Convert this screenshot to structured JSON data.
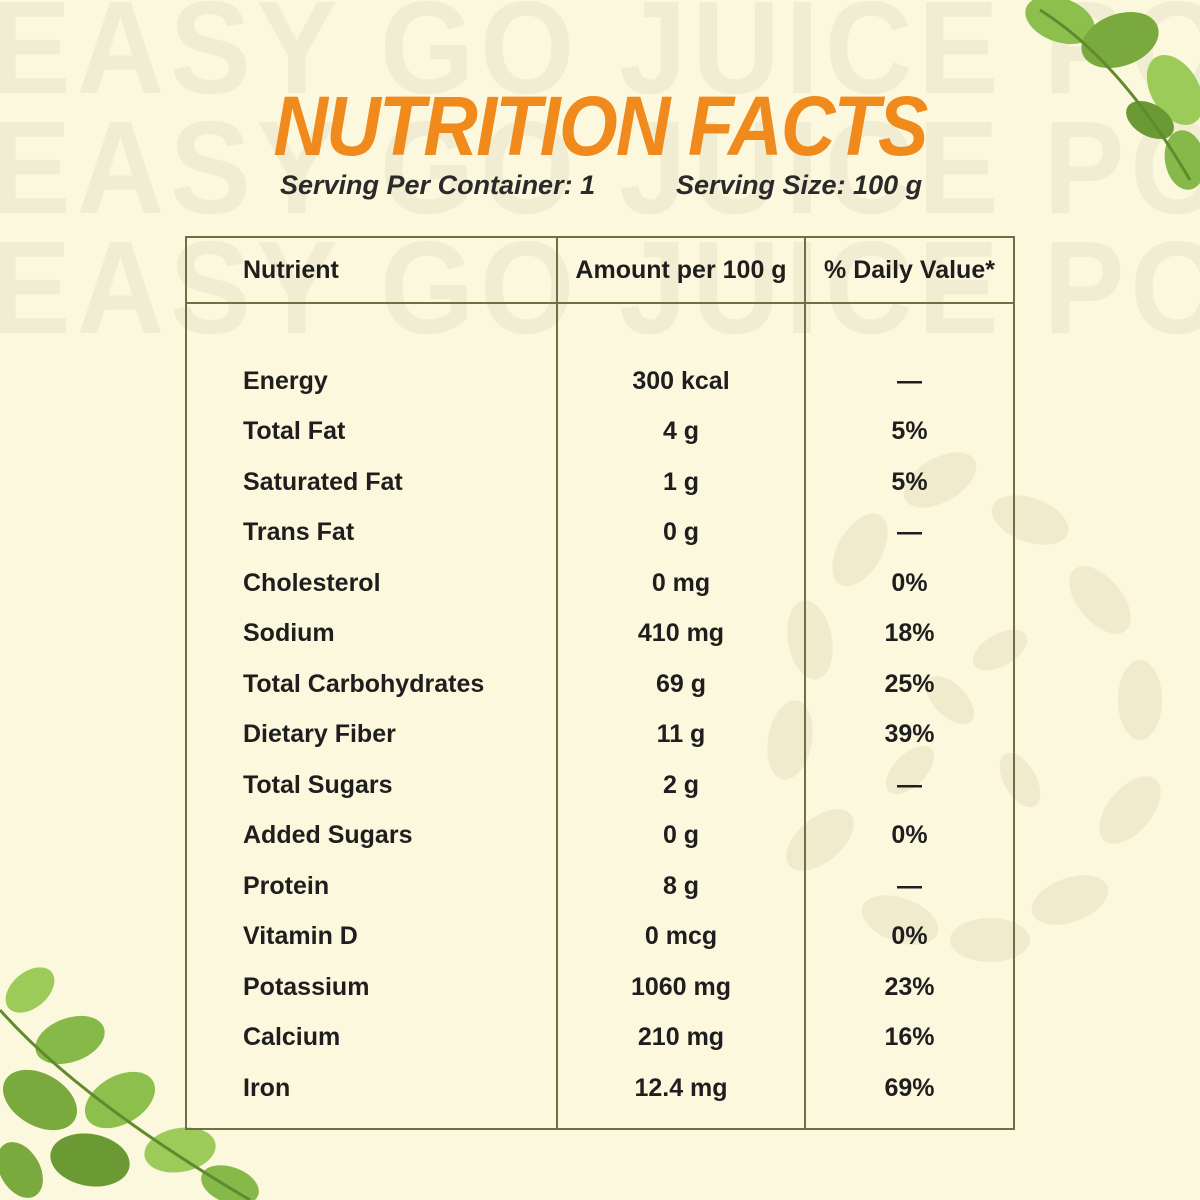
{
  "watermark": {
    "lines": [
      "EASY GO JUICE POWDER",
      "EASY GO JUICE POWDER",
      "EASY GO JUICE POWDER"
    ]
  },
  "title": "NUTRITION FACTS",
  "serving": {
    "per_container": "Serving Per Container: 1",
    "size": "Serving Size: 100 g"
  },
  "table": {
    "headers": {
      "nutrient": "Nutrient",
      "amount": "Amount per 100 g",
      "daily_value": "% Daily Value*"
    },
    "rows": [
      {
        "name": "Energy",
        "amount": "300 kcal",
        "dv": "—"
      },
      {
        "name": "Total Fat",
        "amount": "4 g",
        "dv": "5%"
      },
      {
        "name": "Saturated Fat",
        "amount": "1 g",
        "dv": "5%"
      },
      {
        "name": "Trans Fat",
        "amount": "0 g",
        "dv": "—"
      },
      {
        "name": "Cholesterol",
        "amount": "0 mg",
        "dv": "0%"
      },
      {
        "name": "Sodium",
        "amount": "410 mg",
        "dv": "18%"
      },
      {
        "name": "Total Carbohydrates",
        "amount": "69 g",
        "dv": "25%"
      },
      {
        "name": "Dietary Fiber",
        "amount": "11 g",
        "dv": "39%"
      },
      {
        "name": "Total Sugars",
        "amount": "2 g",
        "dv": "—"
      },
      {
        "name": "Added Sugars",
        "amount": "0 g",
        "dv": "0%"
      },
      {
        "name": "Protein",
        "amount": "8 g",
        "dv": "—"
      },
      {
        "name": "Vitamin D",
        "amount": "0 mcg",
        "dv": "0%"
      },
      {
        "name": "Potassium",
        "amount": "1060 mg",
        "dv": "23%"
      },
      {
        "name": "Calcium",
        "amount": "210 mg",
        "dv": "16%"
      },
      {
        "name": "Iron",
        "amount": "12.4 mg",
        "dv": "69%"
      }
    ]
  },
  "colors": {
    "background": "#fcf8de",
    "title": "#f08a1c",
    "table_border": "#6e6f45",
    "leaf_green": "#7bb043"
  },
  "decorations": {
    "top_right": "fenugreek-leaves-icon",
    "bottom_left": "fenugreek-leaves-icon",
    "background_pattern": "leaf-circle-pattern-icon"
  }
}
